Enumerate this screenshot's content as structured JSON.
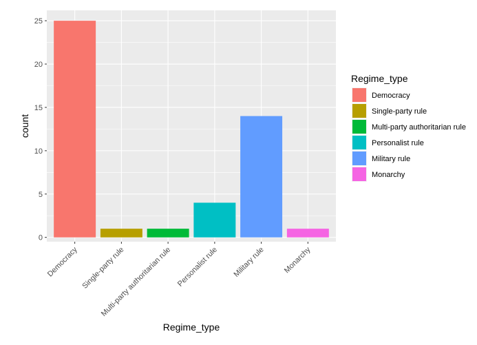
{
  "chart_data": {
    "type": "bar",
    "categories": [
      "Democracy",
      "Single-party rule",
      "Multi-party authoritarian rule",
      "Personalist rule",
      "Military rule",
      "Monarchy"
    ],
    "values": [
      25,
      1,
      1,
      4,
      14,
      1
    ],
    "colors": [
      "#F8766D",
      "#B79F00",
      "#00BA38",
      "#00BFC4",
      "#619CFF",
      "#F564E3"
    ],
    "xlabel": "Regime_type",
    "ylabel": "count",
    "ylim": [
      -0.5,
      26.2
    ],
    "yticks": [
      0,
      5,
      10,
      15,
      20,
      25
    ],
    "ytick_labels": [
      "0",
      "5",
      "10",
      "15",
      "20",
      "25"
    ],
    "grid": true,
    "panel_background": "#EBEBEB",
    "legend": {
      "title": "Regime_type",
      "placement": "right",
      "entries": [
        "Democracy",
        "Single-party rule",
        "Multi-party authoritarian rule",
        "Personalist rule",
        "Military rule",
        "Monarchy"
      ]
    }
  }
}
